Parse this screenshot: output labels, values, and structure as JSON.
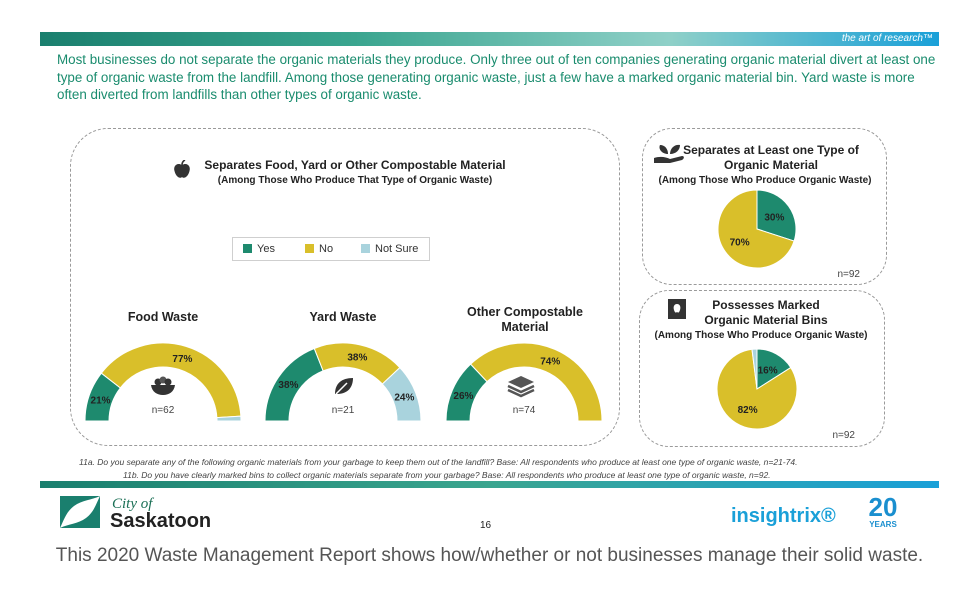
{
  "header": {
    "tagline": "the art of research™"
  },
  "intro": "Most businesses do not separate the organic materials they produce. Only three out of ten companies generating organic material divert at least one type of organic waste from the landfill. Among those generating organic waste, just a few have a marked organic material bin. Yard waste is more often diverted from landfills than other types of organic waste.",
  "left_panel": {
    "title": "Separates Food, Yard or Other Compostable Material",
    "subtitle": "(Among Those Who Produce That Type of Organic Waste)",
    "legend": [
      "Yes",
      "No",
      "Not Sure"
    ]
  },
  "colors": {
    "yes": "#1e8a6e",
    "no": "#d9bf2a",
    "not_sure": "#a9d3dd",
    "accent": "#1a8c6e"
  },
  "icons": [
    "apple-icon",
    "plant-hand-icon",
    "bin-icon",
    "food-bowl-icon",
    "leaf-icon",
    "layers-icon"
  ],
  "chart_data": [
    {
      "type": "gauge",
      "title": "Food Waste",
      "categories": [
        "Yes",
        "No",
        "Not Sure"
      ],
      "values": [
        21,
        77,
        2
      ],
      "value_labels": [
        "21%",
        "77%",
        ""
      ],
      "n": "n=62"
    },
    {
      "type": "gauge",
      "title": "Yard Waste",
      "categories": [
        "Yes",
        "No",
        "Not Sure"
      ],
      "values": [
        38,
        38,
        24
      ],
      "value_labels": [
        "38%",
        "38%",
        "24%"
      ],
      "n": "n=21"
    },
    {
      "type": "gauge",
      "title": "Other Compostable Material",
      "categories": [
        "Yes",
        "No",
        "Not Sure"
      ],
      "values": [
        26,
        74,
        0
      ],
      "value_labels": [
        "26%",
        "74%",
        ""
      ],
      "n": "n=74"
    },
    {
      "type": "pie",
      "title": "Separates at Least one Type of Organic Material",
      "subtitle": "(Among Those Who Produce Organic Waste)",
      "categories": [
        "Yes",
        "No"
      ],
      "values": [
        30,
        70
      ],
      "value_labels": [
        "30%",
        "70%"
      ],
      "n": "n=92"
    },
    {
      "type": "pie",
      "title": "Possesses Marked Organic Material Bins",
      "subtitle": "(Among Those Who Produce Organic Waste)",
      "categories": [
        "Yes",
        "No",
        "Not Sure"
      ],
      "values": [
        16,
        82,
        2
      ],
      "value_labels": [
        "16%",
        "82%",
        ""
      ],
      "n": "n=92"
    }
  ],
  "footnotes": [
    "11a. Do you separate any of the following organic materials from your garbage to keep them out of the landfill? Base: All respondents who produce at least one type of organic waste, n=21-74.",
    "11b. Do you have clearly marked bins to collect organic materials separate from your garbage? Base: All respondents who produce at least one type of organic waste, n=92."
  ],
  "footer": {
    "city_line1": "City of",
    "city_line2": "Saskatoon",
    "page": "16",
    "brand": "insightrix®",
    "anniversary": "20",
    "anniversary_sub": "YEARS"
  },
  "caption": "This 2020 Waste Management Report shows how/whether or not businesses manage their solid waste."
}
